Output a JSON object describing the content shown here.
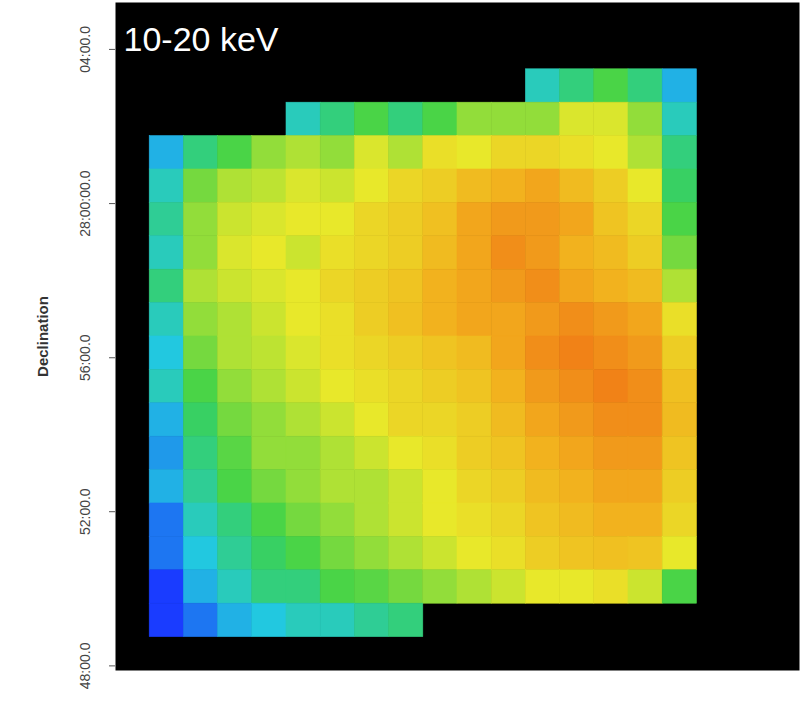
{
  "chart_data": {
    "type": "heatmap",
    "title": "10-20 keV",
    "y_label": "Declination",
    "tick_labels": "y",
    "xlim": [
      0,
      20
    ],
    "ylim": [
      27.798,
      28.087
    ],
    "yticks": [
      {
        "value": 28.0667,
        "label": "04:00.0"
      },
      {
        "value": 28.0,
        "label": "28:00:00.0"
      },
      {
        "value": 27.9333,
        "label": "56:00.0"
      },
      {
        "value": 27.8667,
        "label": "52:00.0"
      },
      {
        "value": 27.8,
        "label": "48:00.0"
      }
    ],
    "color_range": [
      0.3,
      0.9
    ],
    "cells": [
      [
        null,
        null,
        null,
        null,
        null,
        null,
        null,
        null,
        null,
        null,
        null,
        null,
        null,
        null,
        null,
        null,
        null,
        null,
        null,
        null
      ],
      [
        null,
        null,
        null,
        null,
        null,
        null,
        null,
        null,
        null,
        null,
        null,
        null,
        null,
        null,
        null,
        null,
        null,
        null,
        null,
        null
      ],
      [
        null,
        null,
        null,
        null,
        null,
        null,
        null,
        null,
        null,
        null,
        null,
        null,
        0.45,
        0.5,
        0.55,
        0.5,
        0.4,
        null,
        null,
        null
      ],
      [
        null,
        null,
        null,
        null,
        null,
        0.45,
        0.5,
        0.55,
        0.5,
        0.55,
        0.6,
        0.6,
        0.6,
        0.65,
        0.65,
        0.6,
        0.45,
        null,
        null,
        null
      ],
      [
        null,
        0.4,
        0.5,
        0.55,
        0.6,
        0.62,
        0.6,
        0.65,
        0.62,
        0.68,
        0.66,
        0.7,
        0.7,
        0.68,
        0.66,
        0.62,
        0.5,
        null,
        null,
        null
      ],
      [
        null,
        0.45,
        0.58,
        0.62,
        0.63,
        0.65,
        0.64,
        0.66,
        0.7,
        0.72,
        0.76,
        0.78,
        0.8,
        0.76,
        0.72,
        0.66,
        0.52,
        null,
        null,
        null
      ],
      [
        null,
        0.48,
        0.6,
        0.64,
        0.65,
        0.66,
        0.66,
        0.7,
        0.72,
        0.75,
        0.8,
        0.82,
        0.82,
        0.8,
        0.74,
        0.7,
        0.55,
        null,
        null,
        null
      ],
      [
        null,
        0.45,
        0.6,
        0.65,
        0.66,
        0.64,
        0.68,
        0.7,
        0.72,
        0.76,
        0.8,
        0.84,
        0.82,
        0.78,
        0.76,
        0.72,
        0.58,
        null,
        null,
        null
      ],
      [
        null,
        0.5,
        0.62,
        0.64,
        0.65,
        0.66,
        0.7,
        0.72,
        0.74,
        0.78,
        0.8,
        0.82,
        0.84,
        0.8,
        0.78,
        0.76,
        0.62,
        null,
        null,
        null
      ],
      [
        null,
        0.45,
        0.6,
        0.62,
        0.64,
        0.66,
        0.68,
        0.72,
        0.75,
        0.78,
        0.8,
        0.8,
        0.82,
        0.84,
        0.82,
        0.8,
        0.68,
        null,
        null,
        null
      ],
      [
        null,
        0.42,
        0.58,
        0.62,
        0.63,
        0.65,
        0.68,
        0.7,
        0.72,
        0.74,
        0.76,
        0.8,
        0.84,
        0.86,
        0.84,
        0.82,
        0.72,
        null,
        null,
        null
      ],
      [
        null,
        0.45,
        0.55,
        0.6,
        0.62,
        0.64,
        0.66,
        0.68,
        0.7,
        0.72,
        0.74,
        0.78,
        0.82,
        0.84,
        0.86,
        0.84,
        0.75,
        null,
        null,
        null
      ],
      [
        null,
        0.4,
        0.52,
        0.58,
        0.6,
        0.62,
        0.64,
        0.66,
        0.7,
        0.7,
        0.72,
        0.76,
        0.8,
        0.82,
        0.84,
        0.84,
        0.76,
        null,
        null,
        null
      ],
      [
        null,
        0.38,
        0.5,
        0.56,
        0.6,
        0.6,
        0.62,
        0.64,
        0.66,
        0.68,
        0.72,
        0.74,
        0.78,
        0.8,
        0.82,
        0.82,
        0.74,
        null,
        null,
        null
      ],
      [
        null,
        0.4,
        0.48,
        0.55,
        0.58,
        0.6,
        0.62,
        0.62,
        0.64,
        0.66,
        0.7,
        0.72,
        0.76,
        0.78,
        0.8,
        0.8,
        0.72,
        null,
        null,
        null
      ],
      [
        null,
        0.35,
        0.45,
        0.5,
        0.55,
        0.58,
        0.6,
        0.62,
        0.64,
        0.66,
        0.68,
        0.7,
        0.74,
        0.76,
        0.78,
        0.78,
        0.7,
        null,
        null,
        null
      ],
      [
        null,
        0.35,
        0.42,
        0.48,
        0.52,
        0.55,
        0.58,
        0.6,
        0.62,
        0.64,
        0.66,
        0.68,
        0.72,
        0.74,
        0.75,
        0.74,
        0.66,
        null,
        null,
        null
      ],
      [
        null,
        0.3,
        0.4,
        0.45,
        0.5,
        0.5,
        0.55,
        0.56,
        0.58,
        0.6,
        0.62,
        0.64,
        0.66,
        0.66,
        0.68,
        0.64,
        0.55,
        null,
        null,
        null
      ],
      [
        null,
        0.3,
        0.35,
        0.4,
        0.42,
        0.45,
        0.45,
        0.48,
        0.5,
        null,
        null,
        null,
        null,
        null,
        null,
        null,
        null,
        null,
        null,
        null
      ],
      [
        null,
        null,
        null,
        null,
        null,
        null,
        null,
        null,
        null,
        null,
        null,
        null,
        null,
        null,
        null,
        null,
        null,
        null,
        null,
        null
      ]
    ]
  }
}
